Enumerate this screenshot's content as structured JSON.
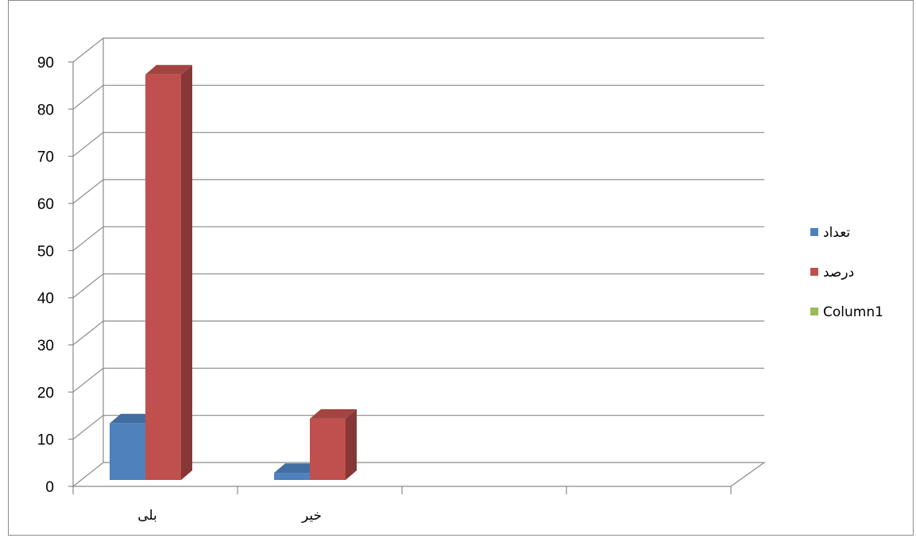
{
  "chart_data": {
    "type": "bar",
    "categories": [
      "بلی",
      "خیر",
      "",
      ""
    ],
    "series": [
      {
        "name": "تعداد",
        "values": [
          12,
          1.5,
          null,
          null
        ],
        "color": "#4f81bd"
      },
      {
        "name": "درصد",
        "values": [
          86,
          13,
          null,
          null
        ],
        "color": "#c0504d"
      },
      {
        "name": "Column1",
        "values": [
          null,
          null,
          null,
          null
        ],
        "color": "#9bbb59"
      }
    ],
    "yticks": [
      "0",
      "10",
      "20",
      "30",
      "40",
      "50",
      "60",
      "70",
      "80",
      "90"
    ],
    "ylim": [
      0,
      90
    ],
    "grid": true,
    "legend_position": "right",
    "style": "3d-clustered-column"
  }
}
